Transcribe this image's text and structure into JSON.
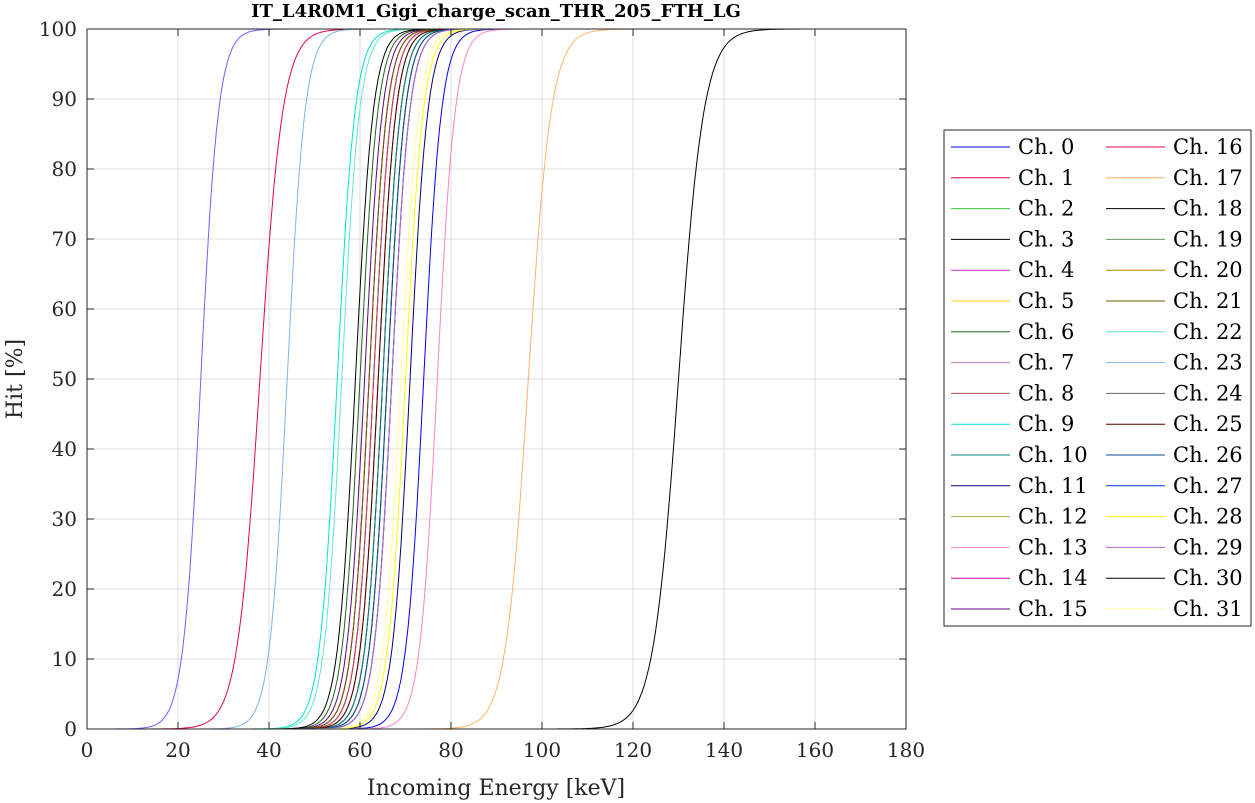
{
  "chart_data": {
    "type": "line",
    "title": "IT_L4R0M1_Gigi_charge_scan_THR_205_FTH_LG",
    "xlabel": "Incoming Energy [keV]",
    "ylabel": "Hit [%]",
    "xlim": [
      0,
      180
    ],
    "ylim": [
      0,
      100
    ],
    "xticks": [
      0,
      20,
      40,
      60,
      80,
      100,
      120,
      140,
      160,
      180
    ],
    "yticks": [
      0,
      10,
      20,
      30,
      40,
      50,
      60,
      70,
      80,
      90,
      100
    ],
    "grid": true,
    "legend_position": "outside-right",
    "legend_columns": 2,
    "series": [
      {
        "name": "Ch. 0",
        "color": "#0000ff",
        "x50": 74,
        "width": 3.5
      },
      {
        "name": "Ch. 1",
        "color": "#e6004d",
        "x50": 63,
        "width": 3.5
      },
      {
        "name": "Ch. 2",
        "color": "#33cc33",
        "x50": 66,
        "width": 3.5
      },
      {
        "name": "Ch. 3",
        "color": "#000000",
        "x50": 65,
        "width": 3.5
      },
      {
        "name": "Ch. 4",
        "color": "#cc33cc",
        "x50": 63,
        "width": 3.5
      },
      {
        "name": "Ch. 5",
        "color": "#ffcc00",
        "x50": 66,
        "width": 3.5
      },
      {
        "name": "Ch. 6",
        "color": "#1a661a",
        "x50": 60,
        "width": 3.5
      },
      {
        "name": "Ch. 7",
        "color": "#b380b3",
        "x50": 64,
        "width": 3.5
      },
      {
        "name": "Ch. 8",
        "color": "#b34d4d",
        "x50": 63,
        "width": 3.5
      },
      {
        "name": "Ch. 9",
        "color": "#00e6cc",
        "x50": 55,
        "width": 3.5
      },
      {
        "name": "Ch. 10",
        "color": "#008080",
        "x50": 65,
        "width": 3.5
      },
      {
        "name": "Ch. 11",
        "color": "#000080",
        "x50": 71,
        "width": 3.5
      },
      {
        "name": "Ch. 12",
        "color": "#99b34d",
        "x50": 62,
        "width": 3.5
      },
      {
        "name": "Ch. 13",
        "color": "#ff80cc",
        "x50": 77,
        "width": 3.5
      },
      {
        "name": "Ch. 14",
        "color": "#cc0099",
        "x50": 62,
        "width": 3.5
      },
      {
        "name": "Ch. 15",
        "color": "#660080",
        "x50": 61,
        "width": 3.5
      },
      {
        "name": "Ch. 16",
        "color": "#e6004d",
        "x50": 38,
        "width": 4.5
      },
      {
        "name": "Ch. 17",
        "color": "#ffb366",
        "x50": 97,
        "width": 4.5
      },
      {
        "name": "Ch. 18",
        "color": "#000000",
        "x50": 130,
        "width": 5
      },
      {
        "name": "Ch. 19",
        "color": "#669966",
        "x50": 67,
        "width": 3.5
      },
      {
        "name": "Ch. 20",
        "color": "#b38000",
        "x50": 64,
        "width": 3.5
      },
      {
        "name": "Ch. 21",
        "color": "#665c00",
        "x50": 62,
        "width": 3.5
      },
      {
        "name": "Ch. 22",
        "color": "#66e6cc",
        "x50": 56,
        "width": 3.5
      },
      {
        "name": "Ch. 23",
        "color": "#80b3e6",
        "x50": 44,
        "width": 3.5
      },
      {
        "name": "Ch. 24",
        "color": "#666666",
        "x50": 66,
        "width": 3.5
      },
      {
        "name": "Ch. 25",
        "color": "#4d0000",
        "x50": 64,
        "width": 3.5
      },
      {
        "name": "Ch. 26",
        "color": "#004d99",
        "x50": 66,
        "width": 3.5
      },
      {
        "name": "Ch. 27",
        "color": "#0033cc",
        "x50": 67,
        "width": 3.5
      },
      {
        "name": "Ch. 28",
        "color": "#ffff00",
        "x50": 70,
        "width": 3.5
      },
      {
        "name": "Ch. 29",
        "color": "#b366cc",
        "x50": 67,
        "width": 3.5
      },
      {
        "name": "Ch. 30",
        "color": "#000000",
        "x50": 59,
        "width": 3.5
      },
      {
        "name": "Ch. 31",
        "color": "#ffff99",
        "x50": 69,
        "width": 3.5
      },
      {
        "name": "",
        "color": "#6666ff",
        "x50": 25,
        "width": 3.5
      }
    ]
  }
}
